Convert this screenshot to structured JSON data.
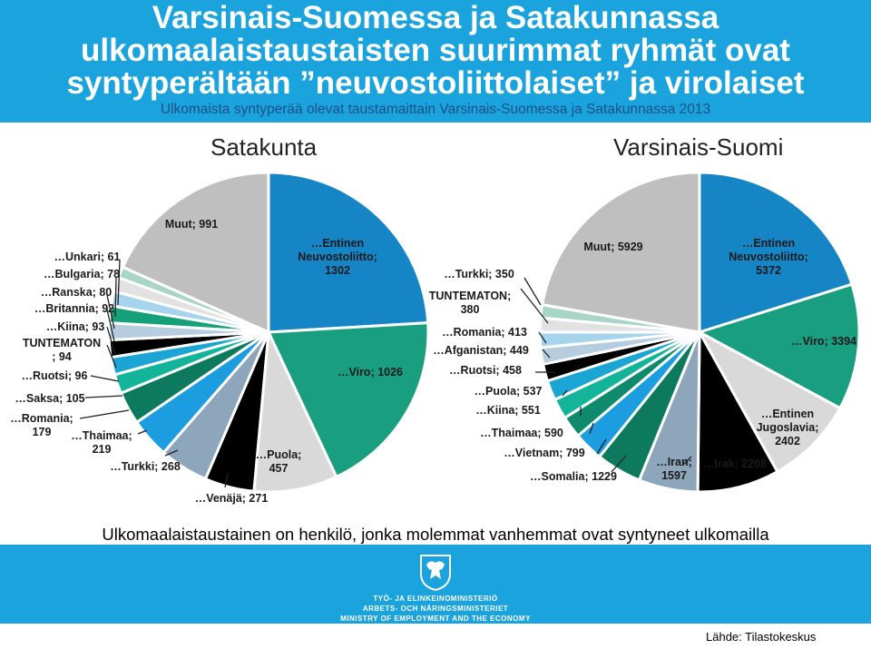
{
  "header": {
    "title_line1": "Varsinais-Suomessa ja Satakunnassa",
    "title_line2": "ulkomaalaistaustaisten suurimmat ryhmät ovat",
    "title_line3": "syntyperältään ”neuvostoliittolaiset” ja virolaiset",
    "subtitle": "Ulkomaista syntyperää olevat taustamaittain Varsinais-Suomessa ja Satakunnassa 2013"
  },
  "chart_data": [
    {
      "type": "pie",
      "title": "Satakunta",
      "slices": [
        {
          "label": "Entinen Neuvostoliitto",
          "display": "…Entinen\nNeuvostoliitto;\n1302",
          "value": 1302,
          "color": "#1585c6"
        },
        {
          "label": "Viro",
          "display": "…Viro; 1026",
          "value": 1026,
          "color": "#1a9e80"
        },
        {
          "label": "Puola",
          "display": "…Puola;\n457",
          "value": 457,
          "color": "#d9d9d9"
        },
        {
          "label": "Venäjä",
          "display": "…Venäjä; 271",
          "value": 271,
          "color": "#000000"
        },
        {
          "label": "Turkki",
          "display": "…Turkki; 268",
          "value": 268,
          "color": "#8ea6bb"
        },
        {
          "label": "Thaimaa",
          "display": "…Thaimaa;\n219",
          "value": 219,
          "color": "#1b9de0"
        },
        {
          "label": "Romania",
          "display": "…Romania;\n179",
          "value": 179,
          "color": "#0d7a5e"
        },
        {
          "label": "Saksa",
          "display": "…Saksa; 105",
          "value": 105,
          "color": "#12b59a"
        },
        {
          "label": "Ruotsi",
          "display": "…Ruotsi; 96",
          "value": 96,
          "color": "#1aa5d4"
        },
        {
          "label": "TUNTEMATON",
          "display": "TUNTEMATON\n; 94",
          "value": 94,
          "color": "#000000"
        },
        {
          "label": "Kiina",
          "display": "…Kiina; 93",
          "value": 93,
          "color": "#b6cde0"
        },
        {
          "label": "Britannia",
          "display": "…Britannia; 92",
          "value": 92,
          "color": "#14a078"
        },
        {
          "label": "Ranska",
          "display": "…Ranska; 80",
          "value": 80,
          "color": "#a6d4ec"
        },
        {
          "label": "Bulgaria",
          "display": "…Bulgaria; 78",
          "value": 78,
          "color": "#e2e2e2"
        },
        {
          "label": "Unkari",
          "display": "…Unkari; 61",
          "value": 61,
          "color": "#a8d6c6"
        },
        {
          "label": "Muut",
          "display": "Muut; 991",
          "value": 991,
          "color": "#bfbfbf"
        }
      ]
    },
    {
      "type": "pie",
      "title": "Varsinais-Suomi",
      "slices": [
        {
          "label": "Entinen Neuvostoliitto",
          "display": "…Entinen\nNeuvostoliitto;\n5372",
          "value": 5372,
          "color": "#1585c6"
        },
        {
          "label": "Viro",
          "display": "…Viro; 3394",
          "value": 3394,
          "color": "#1a9e80"
        },
        {
          "label": "Entinen Jugoslavia",
          "display": "…Entinen\nJugoslavia;\n2402",
          "value": 2402,
          "color": "#d9d9d9"
        },
        {
          "label": "Irak",
          "display": "…Irak; 2208",
          "value": 2208,
          "color": "#000000"
        },
        {
          "label": "Iran",
          "display": "…Iran;\n1597",
          "value": 1597,
          "color": "#8ea6bb"
        },
        {
          "label": "Somalia",
          "display": "…Somalia; 1229",
          "value": 1229,
          "color": "#0d7a5e"
        },
        {
          "label": "Vietnam",
          "display": "…Vietnam; 799",
          "value": 799,
          "color": "#1b9de0"
        },
        {
          "label": "Thaimaa",
          "display": "…Thaimaa; 590",
          "value": 590,
          "color": "#0f8a6c"
        },
        {
          "label": "Kiina",
          "display": "…Kiina; 551",
          "value": 551,
          "color": "#12b59a"
        },
        {
          "label": "Puola",
          "display": "…Puola; 537",
          "value": 537,
          "color": "#1aa5d4"
        },
        {
          "label": "Ruotsi",
          "display": "…Ruotsi; 458",
          "value": 458,
          "color": "#000000"
        },
        {
          "label": "Afganistan",
          "display": "…Afganistan; 449",
          "value": 449,
          "color": "#b6cde0"
        },
        {
          "label": "Romania",
          "display": "…Romania; 413",
          "value": 413,
          "color": "#a6d4ec"
        },
        {
          "label": "TUNTEMATON",
          "display": "TUNTEMATON;\n380",
          "value": 380,
          "color": "#e2e2e2"
        },
        {
          "label": "Turkki",
          "display": "…Turkki; 350",
          "value": 350,
          "color": "#a8d6c6"
        },
        {
          "label": "Muut",
          "display": "Muut; 5929",
          "value": 5929,
          "color": "#bfbfbf"
        }
      ]
    }
  ],
  "footer": {
    "note": "Ulkomaalaistaustainen on henkilö, jonka molemmat vanhemmat  ovat syntyneet ulkomailla",
    "ministry_fi": "TYÖ- JA ELINKEINOMINISTERIÖ",
    "ministry_sv": "ARBETS- OCH NÄRINGSMINISTERIET",
    "ministry_en": "MINISTRY OF EMPLOYMENT AND THE ECONOMY",
    "source": "Lähde: Tilastokeskus"
  },
  "colors": {
    "header_bg": "#1aa3dc",
    "subtitle": "#1a4f8a"
  }
}
